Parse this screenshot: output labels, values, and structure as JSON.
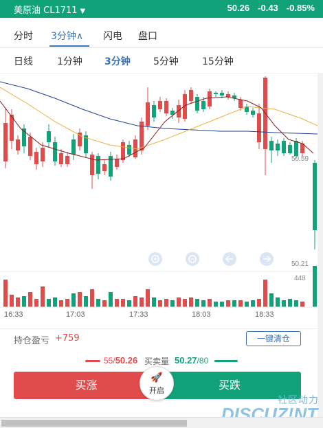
{
  "topbar": {
    "title": "美原油 CL1711",
    "caret": "▼",
    "price": "50.26",
    "change": "-0.43",
    "change_pct": "-0.85%"
  },
  "period_tabs": [
    "分时",
    "3分钟∧",
    "闪电",
    "盘口"
  ],
  "kline_tabs": [
    "日线",
    "1分钟",
    "3分钟",
    "5分钟",
    "15分钟"
  ],
  "chart": {
    "upper_price_label": "50.59",
    "lower_price_label": "50.21",
    "volume_label": "448",
    "time_labels": [
      "16:33",
      "17:03",
      "17:33",
      "18:03",
      "18:33"
    ],
    "colors": {
      "up": "#e04b4b",
      "down": "#12a27a",
      "ma_fast": "#8b1a1a",
      "ma_mid": "#f0b040",
      "ma_slow": "#1f3f8f"
    },
    "controls": [
      "zoom-in-icon",
      "zoom-out-icon",
      "arrow-left-icon",
      "arrow-right-icon"
    ]
  },
  "chart_data": {
    "type": "candlestick",
    "x": [
      "16:33",
      "17:03",
      "17:33",
      "18:03",
      "18:33"
    ],
    "ylabel_ticks": [
      "50.59",
      "50.21"
    ],
    "volume_max_label": "448"
  },
  "position": {
    "label": "持仓盈亏",
    "value": "+759",
    "close_all_button": "一键清仓"
  },
  "orderbook": {
    "bid_qty": "55",
    "bid_price": "50.26",
    "label": "买卖量",
    "ask_price": "50.27",
    "ask_qty": "80"
  },
  "actions": {
    "buy_up": "买涨",
    "buy_down": "买跌",
    "launch": "开启"
  },
  "watermark": {
    "cn": "社区动力",
    "en": "DISCUZ!NT"
  }
}
